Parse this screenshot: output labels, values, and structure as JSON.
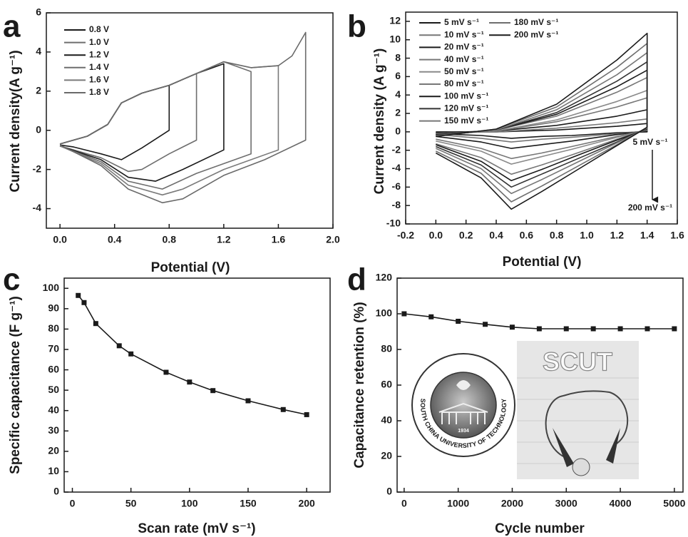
{
  "chart_data": [
    {
      "type": "line",
      "label": "a",
      "xlabel": "Potential (V)",
      "ylabel": "Current density(A g⁻¹)",
      "xlim": [
        -0.1,
        2.0
      ],
      "ylim": [
        -5,
        6
      ],
      "xticks": [
        {
          "value": 0,
          "label": "0.0"
        },
        0.4,
        0.8,
        1.2,
        1.6,
        {
          "value": 2,
          "label": "2.0"
        }
      ],
      "yticks": [
        -4,
        -2,
        0,
        2,
        4,
        6
      ],
      "series": [
        {
          "name": "0.8 V",
          "color": "#1a1a1a",
          "x": [
            0,
            0.2,
            0.35,
            0.45,
            0.6,
            0.8,
            0.8,
            0.6,
            0.45,
            0.3,
            0.1,
            0
          ],
          "values": [
            -0.7,
            -0.3,
            0.3,
            1.4,
            1.9,
            2.3,
            0,
            -0.9,
            -1.5,
            -1.2,
            -0.85,
            -0.75
          ]
        },
        {
          "name": "1.0 V",
          "color": "#6e6e6e",
          "x": [
            0,
            0.2,
            0.35,
            0.45,
            0.6,
            0.8,
            1.0,
            1.0,
            0.8,
            0.6,
            0.5,
            0.3,
            0
          ],
          "values": [
            -0.7,
            -0.3,
            0.3,
            1.4,
            1.9,
            2.3,
            2.9,
            -0.5,
            -1.2,
            -2.0,
            -2.1,
            -1.4,
            -0.8
          ]
        },
        {
          "name": "1.2 V",
          "color": "#1a1a1a",
          "x": [
            0,
            0.2,
            0.35,
            0.45,
            0.6,
            0.8,
            1.0,
            1.2,
            1.2,
            0.9,
            0.7,
            0.5,
            0.3,
            0
          ],
          "values": [
            -0.7,
            -0.3,
            0.3,
            1.4,
            1.9,
            2.3,
            2.9,
            3.4,
            -1.0,
            -2.0,
            -2.6,
            -2.4,
            -1.5,
            -0.8
          ]
        },
        {
          "name": "1.4 V",
          "color": "#6e6e6e",
          "x": [
            0,
            0.2,
            0.35,
            0.45,
            0.6,
            0.8,
            1.0,
            1.2,
            1.4,
            1.4,
            1.0,
            0.75,
            0.5,
            0.3,
            0
          ],
          "values": [
            -0.7,
            -0.3,
            0.3,
            1.4,
            1.9,
            2.3,
            2.9,
            3.5,
            3.0,
            -1.2,
            -2.2,
            -3.0,
            -2.6,
            -1.6,
            -0.8
          ]
        },
        {
          "name": "1.6 V",
          "color": "#7a7a7a",
          "x": [
            0,
            0.2,
            0.35,
            0.45,
            0.6,
            0.8,
            1.0,
            1.2,
            1.4,
            1.6,
            1.6,
            1.2,
            0.9,
            0.75,
            0.5,
            0.3,
            0
          ],
          "values": [
            -0.7,
            -0.3,
            0.3,
            1.4,
            1.9,
            2.3,
            2.9,
            3.5,
            3.2,
            3.3,
            -1.0,
            -2.0,
            -3.0,
            -3.3,
            -2.8,
            -1.7,
            -0.8
          ]
        },
        {
          "name": "1.8 V",
          "color": "#6a6a6a",
          "x": [
            0,
            0.2,
            0.35,
            0.45,
            0.6,
            0.8,
            1.0,
            1.2,
            1.4,
            1.6,
            1.7,
            1.8,
            1.8,
            1.5,
            1.2,
            0.9,
            0.75,
            0.5,
            0.3,
            0
          ],
          "values": [
            -0.7,
            -0.3,
            0.3,
            1.4,
            1.9,
            2.3,
            2.9,
            3.5,
            3.2,
            3.3,
            3.8,
            5.0,
            -0.5,
            -1.5,
            -2.3,
            -3.5,
            -3.7,
            -3.0,
            -1.8,
            -0.75
          ]
        }
      ]
    },
    {
      "type": "line",
      "label": "b",
      "xlabel": "Potential (V)",
      "ylabel": "Current density (A g⁻¹)",
      "xlim": [
        -0.2,
        1.6
      ],
      "ylim": [
        -10,
        13
      ],
      "xticks": [
        -0.2,
        {
          "value": 0,
          "label": "0.0"
        },
        0.2,
        0.4,
        0.6,
        0.8,
        {
          "value": 1,
          "label": "1.0"
        },
        1.2,
        1.4,
        1.6
      ],
      "yticks": [
        -10,
        -8,
        -6,
        -4,
        -2,
        0,
        2,
        4,
        6,
        8,
        10,
        12
      ],
      "x": [
        0,
        0.4,
        0.8,
        1.2,
        1.4,
        1.4,
        1.2,
        0.9,
        0.7,
        0.5,
        0.3,
        0
      ],
      "annotations": [
        "5 mV s⁻¹",
        "200 mV s⁻¹"
      ],
      "series": [
        {
          "name": "5 mV s⁻¹",
          "color": "#1a1a1a",
          "values": [
            0.0,
            0.0,
            0.2,
            0.6,
            0.9,
            0.0,
            -0.1,
            -0.4,
            -0.5,
            -0.7,
            -0.4,
            -0.2
          ]
        },
        {
          "name": "10 mV s⁻¹",
          "color": "#777777",
          "values": [
            -0.1,
            0.0,
            0.4,
            1.0,
            1.4,
            0.1,
            -0.2,
            -0.6,
            -0.8,
            -1.1,
            -0.7,
            -0.3
          ]
        },
        {
          "name": "20 mV s⁻¹",
          "color": "#1a1a1a",
          "values": [
            -0.1,
            0.1,
            0.7,
            1.7,
            2.4,
            0.1,
            -0.3,
            -1.0,
            -1.4,
            -1.8,
            -1.1,
            -0.5
          ]
        },
        {
          "name": "40 mV s⁻¹",
          "color": "#777777",
          "values": [
            -0.2,
            0.1,
            1.1,
            2.7,
            3.7,
            0.2,
            -0.5,
            -1.6,
            -2.3,
            -2.9,
            -1.8,
            -0.8
          ]
        },
        {
          "name": "50 mV s⁻¹",
          "color": "#8a8a8a",
          "values": [
            -0.2,
            0.1,
            1.3,
            3.3,
            4.5,
            0.2,
            -0.6,
            -1.9,
            -2.7,
            -3.5,
            -2.1,
            -1.0
          ]
        },
        {
          "name": "80 mV s⁻¹",
          "color": "#777777",
          "values": [
            -0.3,
            0.2,
            1.7,
            4.3,
            5.9,
            0.3,
            -0.8,
            -2.5,
            -3.6,
            -4.6,
            -2.8,
            -1.3
          ]
        },
        {
          "name": "100 mV s⁻¹",
          "color": "#1a1a1a",
          "values": [
            -0.3,
            0.2,
            1.9,
            4.9,
            6.7,
            0.3,
            -0.9,
            -2.8,
            -4.1,
            -5.3,
            -3.2,
            -1.4
          ]
        },
        {
          "name": "120 mV s⁻¹",
          "color": "#333333",
          "values": [
            -0.4,
            0.2,
            2.1,
            5.5,
            7.6,
            0.4,
            -1.1,
            -3.2,
            -4.6,
            -6.0,
            -3.6,
            -1.6
          ]
        },
        {
          "name": "150 mV s⁻¹",
          "color": "#777777",
          "values": [
            -0.4,
            0.2,
            2.4,
            6.2,
            8.6,
            0.4,
            -1.2,
            -3.6,
            -5.2,
            -6.7,
            -4.0,
            -1.8
          ]
        },
        {
          "name": "180 mV s⁻¹",
          "color": "#6e6e6e",
          "values": [
            -0.5,
            0.3,
            2.7,
            7.0,
            9.6,
            0.5,
            -1.4,
            -4.1,
            -5.9,
            -7.6,
            -4.5,
            -2.1
          ]
        },
        {
          "name": "200 mV s⁻¹",
          "color": "#1a1a1a",
          "values": [
            -0.5,
            0.3,
            3.0,
            7.8,
            10.7,
            0.5,
            -1.5,
            -4.5,
            -6.5,
            -8.4,
            -5.0,
            -2.3
          ]
        }
      ]
    },
    {
      "type": "line",
      "label": "c",
      "xlabel": "Scan rate (mV s⁻¹)",
      "ylabel": "Specific capacitance (F g⁻¹)",
      "xlim": [
        -7,
        220
      ],
      "ylim": [
        0,
        105
      ],
      "markers": "square",
      "color": "#1a1a1a",
      "xticks": [
        0,
        50,
        100,
        150,
        200
      ],
      "yticks": [
        0,
        10,
        20,
        30,
        40,
        50,
        60,
        70,
        80,
        90,
        100
      ],
      "x": [
        5,
        10,
        20,
        40,
        50,
        80,
        100,
        120,
        150,
        180,
        200
      ],
      "values": [
        96.5,
        93,
        82.7,
        71.8,
        67.8,
        58.8,
        54,
        49.8,
        44.8,
        40.5,
        38
      ]
    },
    {
      "type": "line",
      "label": "d",
      "xlabel": "Cycle number",
      "ylabel": "Capacitance retention (%)",
      "xlim": [
        -130,
        5160
      ],
      "ylim": [
        0,
        120
      ],
      "markers": "square",
      "color": "#1a1a1a",
      "xticks": [
        0,
        1000,
        2000,
        3000,
        4000,
        5000
      ],
      "yticks": [
        0,
        20,
        40,
        60,
        80,
        100,
        120
      ],
      "x": [
        0,
        500,
        1000,
        1500,
        2000,
        2500,
        3000,
        3500,
        4000,
        4500,
        5000
      ],
      "values": [
        100,
        98.3,
        95.8,
        94.1,
        92.5,
        91.6,
        91.6,
        91.6,
        91.6,
        91.6,
        91.6
      ],
      "insets": {
        "logo_name": "SOUTH CHINA UNIVERSITY OF TECHNOLOGY",
        "logo_year": "1934",
        "photo_text": "SCUT"
      }
    }
  ]
}
